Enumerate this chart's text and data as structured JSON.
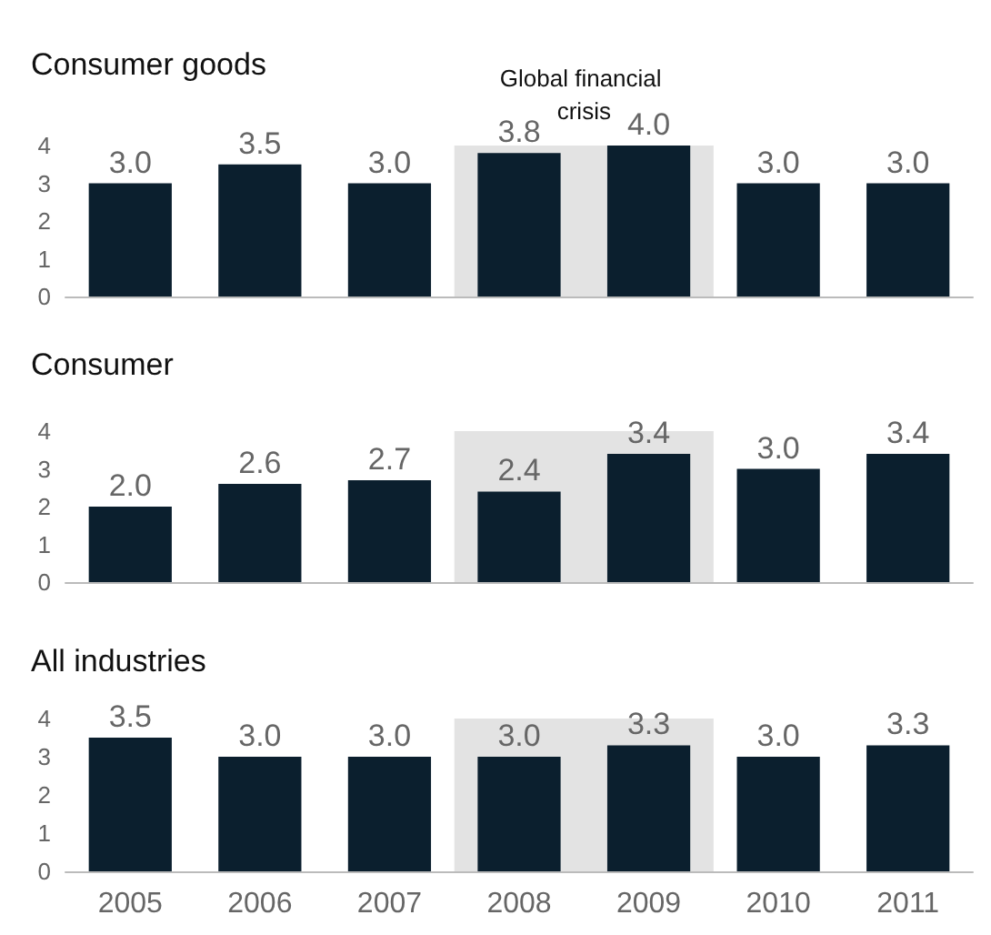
{
  "chart_data": [
    {
      "type": "bar",
      "title": "Consumer goods",
      "categories": [
        "2005",
        "2006",
        "2007",
        "2008",
        "2009",
        "2010",
        "2011"
      ],
      "values": [
        3.0,
        3.5,
        3.0,
        3.8,
        4.0,
        3.0,
        3.0
      ],
      "value_labels": [
        "3.0",
        "3.5",
        "3.0",
        "3.8",
        "4.0",
        "3.0",
        "3.0"
      ],
      "color": "#0b1f2e",
      "ylim": [
        0,
        4
      ],
      "yticks": [
        0,
        1,
        2,
        3,
        4
      ],
      "grid": false,
      "tick_labels": "y",
      "bands": [
        {
          "axis": "x",
          "from": "2008",
          "to": "2009",
          "label": "Global financial crisis",
          "color": "#e3e3e3"
        }
      ]
    },
    {
      "type": "bar",
      "title": "Consumer",
      "categories": [
        "2005",
        "2006",
        "2007",
        "2008",
        "2009",
        "2010",
        "2011"
      ],
      "values": [
        2.0,
        2.6,
        2.7,
        2.4,
        3.4,
        3.0,
        3.4
      ],
      "value_labels": [
        "2.0",
        "2.6",
        "2.7",
        "2.4",
        "3.4",
        "3.0",
        "3.4"
      ],
      "color": "#0b1f2e",
      "ylim": [
        0,
        4
      ],
      "yticks": [
        0,
        1,
        2,
        3,
        4
      ],
      "grid": false,
      "tick_labels": "y",
      "bands": [
        {
          "axis": "x",
          "from": "2008",
          "to": "2009",
          "color": "#e3e3e3"
        }
      ]
    },
    {
      "type": "bar",
      "title": "All industries",
      "categories": [
        "2005",
        "2006",
        "2007",
        "2008",
        "2009",
        "2010",
        "2011"
      ],
      "values": [
        3.5,
        3.0,
        3.0,
        3.0,
        3.3,
        3.0,
        3.3
      ],
      "value_labels": [
        "3.5",
        "3.0",
        "3.0",
        "3.0",
        "3.3",
        "3.0",
        "3.3"
      ],
      "color": "#0b1f2e",
      "ylim": [
        0,
        4
      ],
      "yticks": [
        0,
        1,
        2,
        3,
        4
      ],
      "grid": false,
      "bands": [
        {
          "axis": "x",
          "from": "2008",
          "to": "2009",
          "color": "#e3e3e3"
        }
      ]
    }
  ]
}
